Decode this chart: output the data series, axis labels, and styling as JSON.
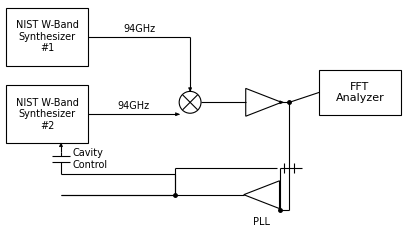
{
  "bg_color": "#ffffff",
  "box1_label": "NIST W-Band\nSynthesizer\n#1",
  "box2_label": "NIST W-Band\nSynthesizer\n#2",
  "fft_label": "FFT\nAnalyzer",
  "label_94ghz_top": "94GHz",
  "label_94ghz_mid": "94GHz",
  "cavity_label": "Cavity\nControl",
  "pll_label": "PLL",
  "font_size": 7,
  "line_color": "#000000",
  "line_width": 0.8
}
